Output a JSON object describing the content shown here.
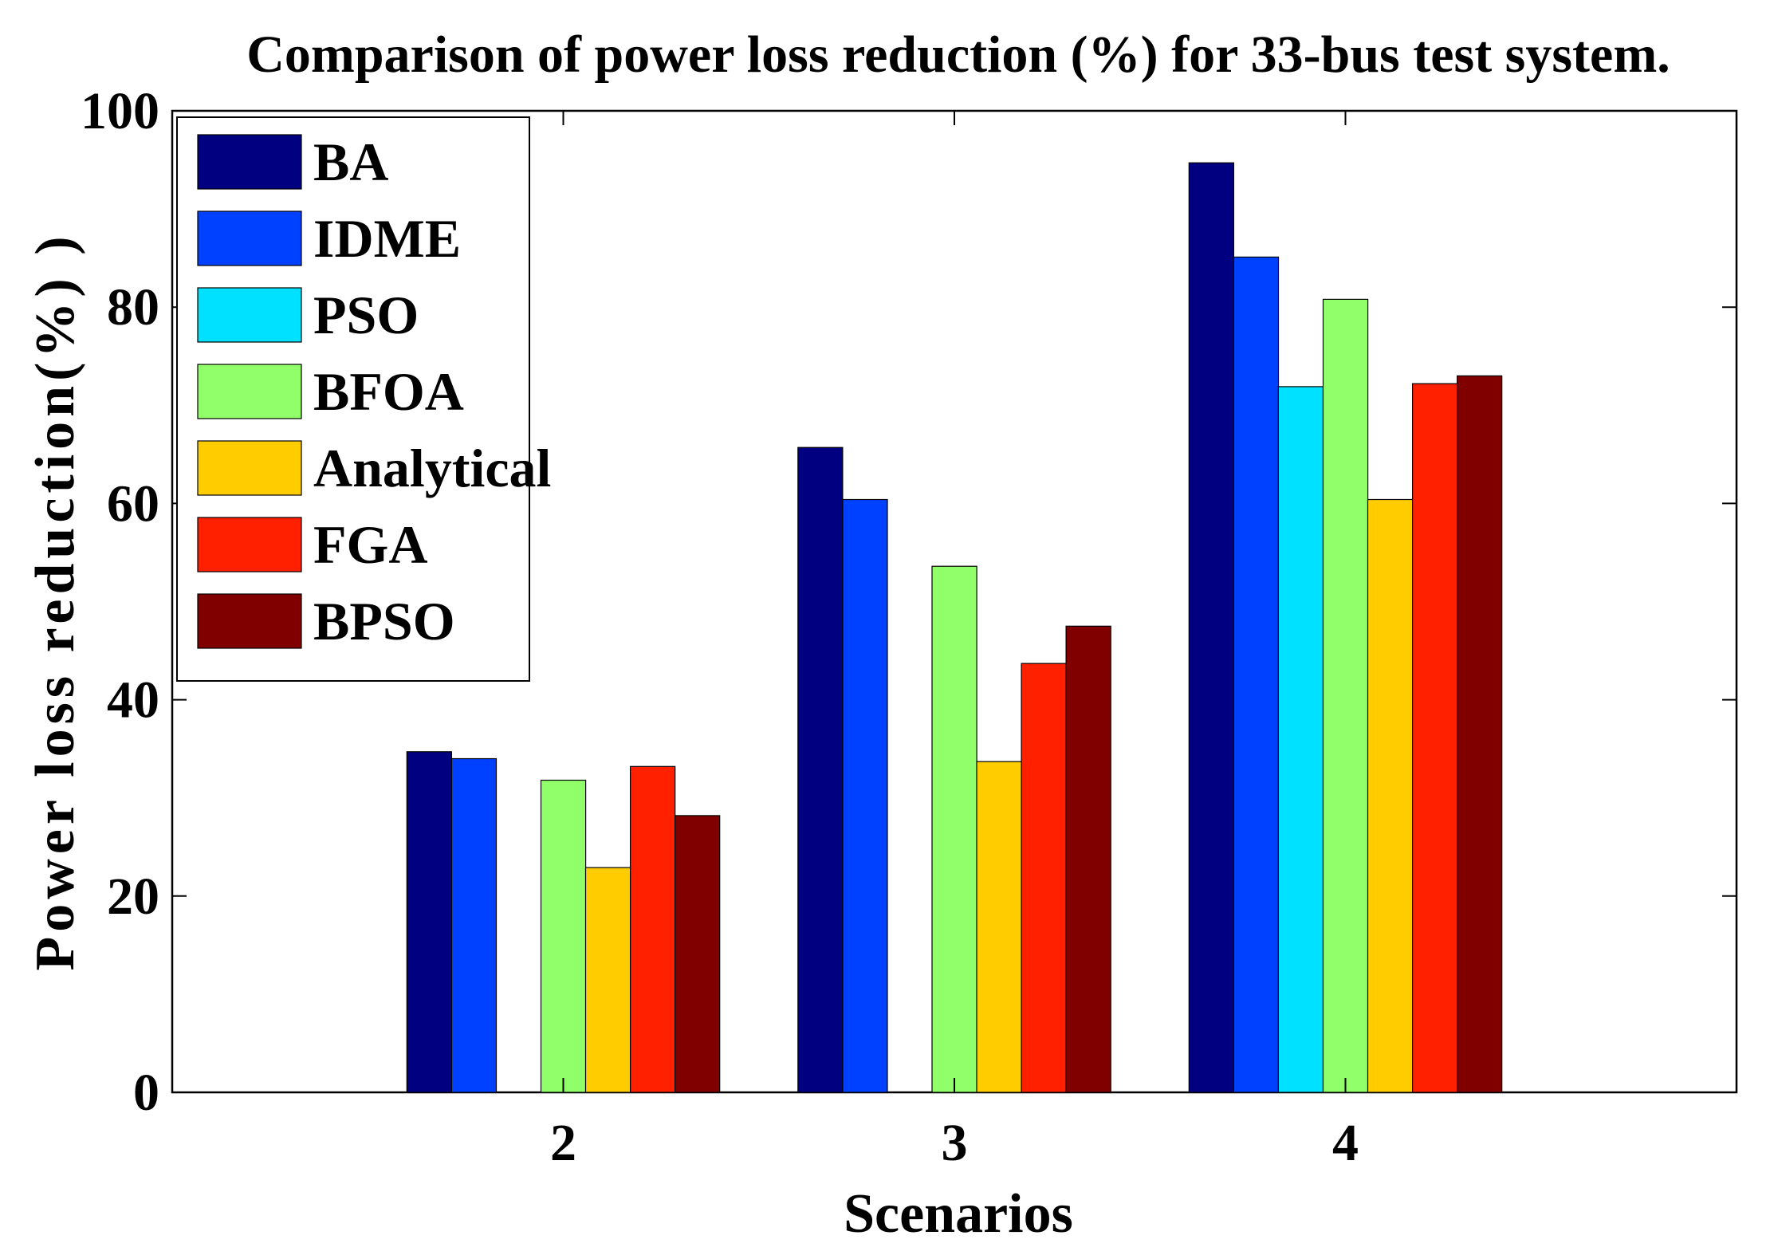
{
  "chart_data": {
    "type": "bar",
    "title": "Comparison of power loss reduction (%) for 33-bus test system.",
    "xlabel": "Scenarios",
    "ylabel": "Power loss reduction(%) )",
    "categories": [
      "2",
      "3",
      "4"
    ],
    "ylim": [
      0,
      100
    ],
    "yticks": [
      0,
      20,
      40,
      60,
      80,
      100
    ],
    "grid": false,
    "legend_position": "top-left",
    "series": [
      {
        "name": "BA",
        "color": "#000080",
        "values": [
          34.7,
          65.7,
          94.7
        ]
      },
      {
        "name": "IDME",
        "color": "#0040ff",
        "values": [
          34.0,
          60.4,
          85.1
        ]
      },
      {
        "name": "PSO",
        "color": "#00e0ff",
        "values": [
          0,
          0,
          71.9
        ]
      },
      {
        "name": "BFOA",
        "color": "#90ff6a",
        "values": [
          31.8,
          53.6,
          80.8
        ]
      },
      {
        "name": "Analytical",
        "color": "#ffcc00",
        "values": [
          22.9,
          33.7,
          60.4
        ]
      },
      {
        "name": "FGA",
        "color": "#ff2000",
        "values": [
          33.2,
          43.7,
          72.2
        ]
      },
      {
        "name": "BPSO",
        "color": "#800000",
        "values": [
          28.2,
          47.5,
          73.0
        ]
      }
    ]
  }
}
